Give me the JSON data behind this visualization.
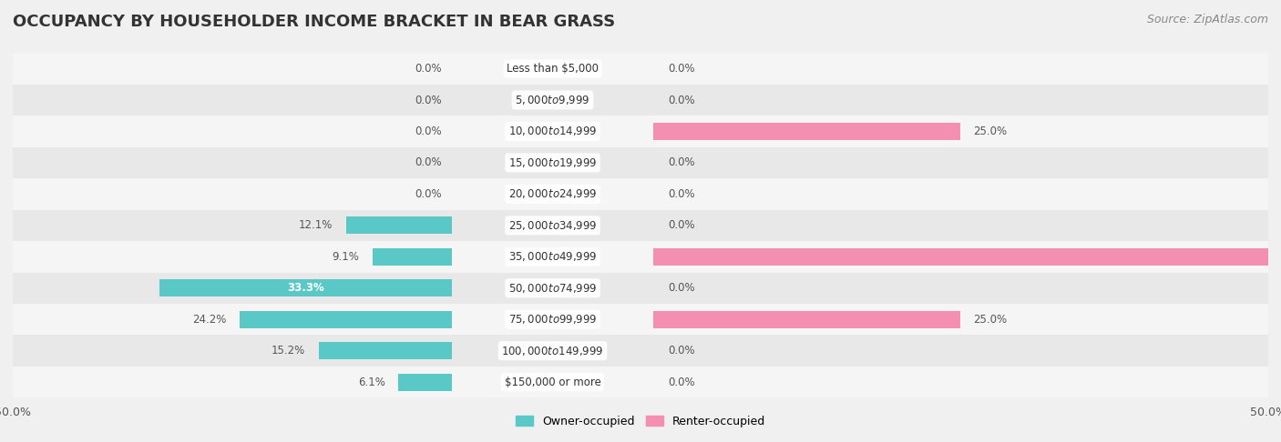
{
  "title": "OCCUPANCY BY HOUSEHOLDER INCOME BRACKET IN BEAR GRASS",
  "source": "Source: ZipAtlas.com",
  "categories": [
    "Less than $5,000",
    "$5,000 to $9,999",
    "$10,000 to $14,999",
    "$15,000 to $19,999",
    "$20,000 to $24,999",
    "$25,000 to $34,999",
    "$35,000 to $49,999",
    "$50,000 to $74,999",
    "$75,000 to $99,999",
    "$100,000 to $149,999",
    "$150,000 or more"
  ],
  "owner_values": [
    0.0,
    0.0,
    0.0,
    0.0,
    0.0,
    12.1,
    9.1,
    33.3,
    24.2,
    15.2,
    6.1
  ],
  "renter_values": [
    0.0,
    0.0,
    25.0,
    0.0,
    0.0,
    0.0,
    50.0,
    0.0,
    25.0,
    0.0,
    0.0
  ],
  "owner_color": "#5BC8C8",
  "renter_color": "#F48FB1",
  "background_color": "#f0f0f0",
  "xlim": 50.0,
  "title_fontsize": 13,
  "source_fontsize": 9,
  "label_fontsize": 8.5,
  "category_fontsize": 8.5,
  "legend_fontsize": 9,
  "axis_label_fontsize": 9,
  "bar_height": 0.55,
  "row_bg_colors": [
    "#f5f5f5",
    "#e8e8e8"
  ]
}
